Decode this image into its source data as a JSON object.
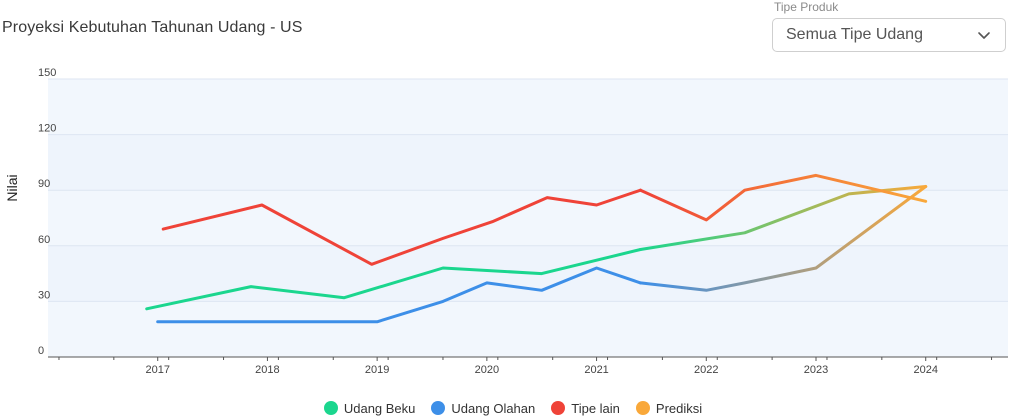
{
  "header": {
    "title": "Proyeksi Kebutuhan Tahunan Udang - US",
    "filter_label": "Tipe Produk",
    "filter_value": "Semua Tipe Udang",
    "filter_icon": "chevron-down-icon"
  },
  "colors": {
    "band": "#eef4fc",
    "grid": "#dde6f2",
    "axis": "#555555",
    "udang_beku": "#1bd68e",
    "udang_olahan": "#3d8fe8",
    "tipe_lain": "#ef4338",
    "prediksi": "#f9a83a"
  },
  "chart_data": {
    "type": "line",
    "title": "Proyeksi Kebutuhan Tahunan Udang - US",
    "xlabel": "",
    "ylabel": "Nilai",
    "ylim": [
      0,
      150
    ],
    "yticks": [
      0,
      30,
      60,
      90,
      120,
      150
    ],
    "xlim": [
      2016,
      2024.75
    ],
    "xticks": [
      2017,
      2018,
      2019,
      2020,
      2021,
      2022,
      2023,
      2024
    ],
    "grid": true,
    "legend_position": "bottom",
    "series": [
      {
        "name": "Udang Beku",
        "color": "#1bd68e",
        "actual": [
          [
            2016.9,
            26
          ],
          [
            2017.85,
            38
          ],
          [
            2018.7,
            32
          ],
          [
            2019.6,
            48
          ],
          [
            2020.5,
            45
          ],
          [
            2021.4,
            58
          ]
        ],
        "forecast": [
          [
            2021.4,
            58
          ],
          [
            2022.35,
            67
          ],
          [
            2023.3,
            88
          ],
          [
            2024.0,
            92
          ]
        ]
      },
      {
        "name": "Udang Olahan",
        "color": "#3d8fe8",
        "actual": [
          [
            2017.0,
            19
          ],
          [
            2017.9,
            19
          ],
          [
            2019.0,
            19
          ],
          [
            2019.6,
            30
          ],
          [
            2020.0,
            40
          ],
          [
            2020.5,
            36
          ],
          [
            2021.0,
            48
          ],
          [
            2021.4,
            40
          ]
        ],
        "forecast": [
          [
            2021.4,
            40
          ],
          [
            2022.0,
            36
          ],
          [
            2022.35,
            40
          ],
          [
            2023.0,
            48
          ],
          [
            2024.0,
            92
          ]
        ]
      },
      {
        "name": "Tipe lain",
        "color": "#ef4338",
        "actual": [
          [
            2017.05,
            69
          ],
          [
            2017.95,
            82
          ],
          [
            2018.95,
            50
          ],
          [
            2019.6,
            64
          ],
          [
            2020.05,
            73
          ],
          [
            2020.55,
            86
          ],
          [
            2021.0,
            82
          ],
          [
            2021.4,
            90
          ]
        ],
        "forecast": [
          [
            2021.4,
            90
          ],
          [
            2022.0,
            74
          ],
          [
            2022.35,
            90
          ],
          [
            2023.0,
            98
          ],
          [
            2024.0,
            84
          ]
        ]
      },
      {
        "name": "Prediksi",
        "color": "#f9a83a"
      }
    ]
  }
}
